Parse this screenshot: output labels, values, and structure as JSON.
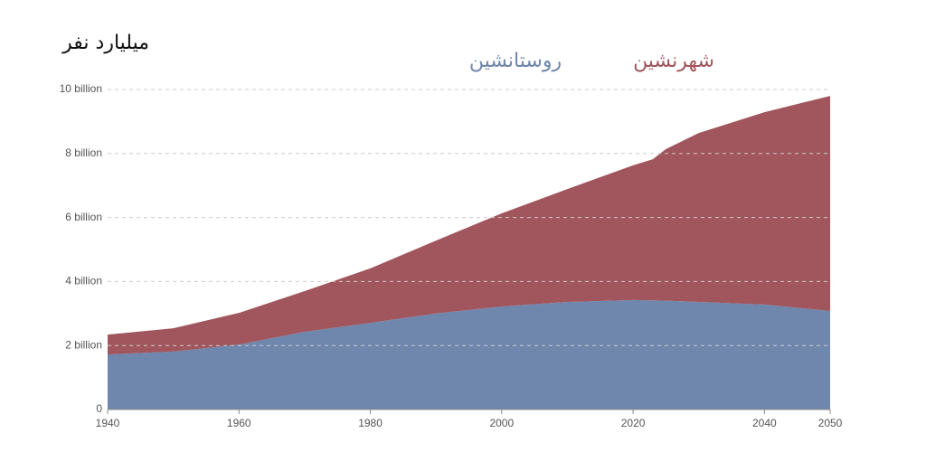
{
  "chart_data": {
    "type": "stacked_area",
    "title": "میلیارد نفر",
    "x": [
      1940,
      1950,
      1960,
      1970,
      1980,
      1990,
      2000,
      2010,
      2020,
      2023,
      2025,
      2030,
      2040,
      2050
    ],
    "series": [
      {
        "name": "روستانشین",
        "color": "#6f86ad",
        "values": [
          1.72,
          1.81,
          2.03,
          2.43,
          2.71,
          3.0,
          3.22,
          3.36,
          3.42,
          3.41,
          3.4,
          3.36,
          3.28,
          3.08
        ]
      },
      {
        "name": "شهرنشین",
        "color": "#a0565c",
        "values": [
          0.62,
          0.73,
          0.99,
          1.27,
          1.7,
          2.28,
          2.91,
          3.53,
          4.21,
          4.41,
          4.74,
          5.28,
          6.01,
          6.72
        ]
      }
    ],
    "xlim": [
      1940,
      2050
    ],
    "xticks": [
      1940,
      1960,
      1980,
      2000,
      2020,
      2040,
      2050
    ],
    "ylim": [
      0,
      10
    ],
    "yticks": [
      0,
      {
        "value": 2,
        "label": "2 billion"
      },
      {
        "value": 4,
        "label": "4 billion"
      },
      {
        "value": 6,
        "label": "6 billion"
      },
      {
        "value": 8,
        "label": "8 billion"
      },
      {
        "value": 10,
        "label": "10 billion"
      }
    ],
    "grid": true
  }
}
